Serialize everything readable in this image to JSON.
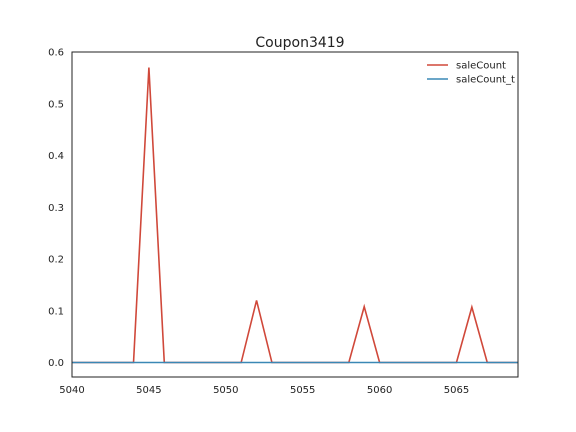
{
  "chart_data": {
    "type": "line",
    "title": "Coupon3419",
    "xlabel": "",
    "ylabel": "",
    "xlim": [
      5040,
      5069
    ],
    "ylim": [
      -0.028,
      0.6
    ],
    "xticks": [
      5040,
      5045,
      5050,
      5055,
      5060,
      5065
    ],
    "yticks": [
      0.0,
      0.1,
      0.2,
      0.3,
      0.4,
      0.5,
      0.6
    ],
    "xtick_labels": [
      "5040",
      "5045",
      "5050",
      "5055",
      "5060",
      "5065"
    ],
    "ytick_labels": [
      "0.0",
      "0.1",
      "0.2",
      "0.3",
      "0.4",
      "0.5",
      "0.6"
    ],
    "grid": false,
    "legend_position": "top-right",
    "series": [
      {
        "name": "saleCount",
        "color": "#d0483a",
        "x": [
          5040,
          5041,
          5042,
          5043,
          5044,
          5045,
          5046,
          5047,
          5048,
          5049,
          5050,
          5051,
          5052,
          5053,
          5054,
          5055,
          5056,
          5057,
          5058,
          5059,
          5060,
          5061,
          5062,
          5063,
          5064,
          5065,
          5066,
          5067,
          5068,
          5069
        ],
        "y": [
          0,
          0,
          0,
          0,
          0,
          0.57,
          0,
          0,
          0,
          0,
          0,
          0,
          0.12,
          0,
          0,
          0,
          0,
          0,
          0,
          0.108,
          0,
          0,
          0,
          0,
          0,
          0,
          0.107,
          0,
          0,
          0
        ]
      },
      {
        "name": "saleCount_t",
        "color": "#3a88b5",
        "x": [
          5040,
          5069
        ],
        "y": [
          0,
          0
        ]
      }
    ]
  }
}
